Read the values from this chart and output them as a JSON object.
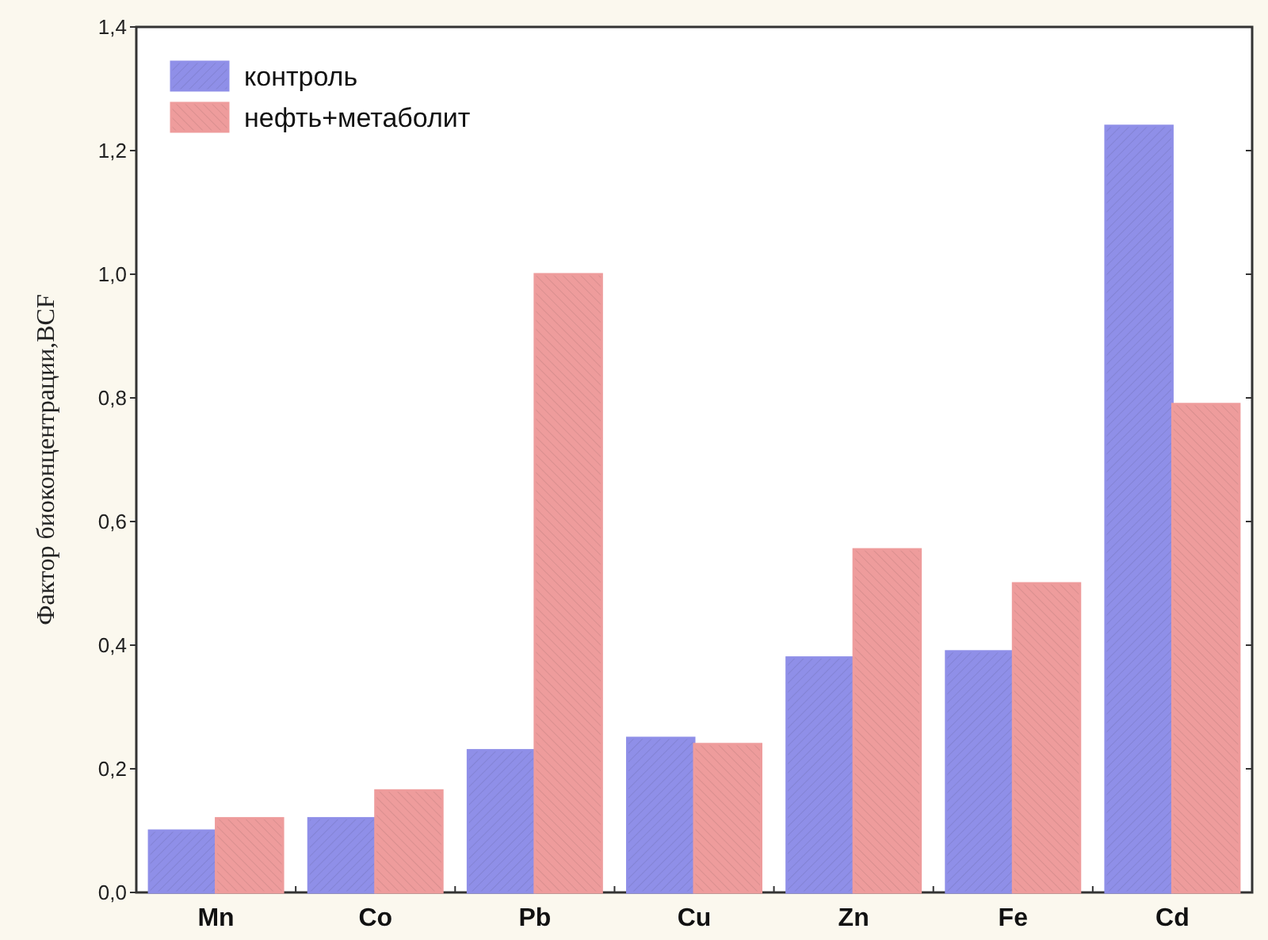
{
  "chart_data": {
    "type": "bar",
    "ylabel": "Фактор биоконцентрации,BCF",
    "categories": [
      "Mn",
      "Co",
      "Pb",
      "Cu",
      "Zn",
      "Fe",
      "Cd"
    ],
    "series": [
      {
        "name": "контроль",
        "color": "#8f8fe8",
        "values": [
          0.1,
          0.12,
          0.23,
          0.25,
          0.38,
          0.39,
          1.24
        ]
      },
      {
        "name": "нефть+метаболит",
        "color": "#ee9c9c",
        "values": [
          0.12,
          0.165,
          1.0,
          0.24,
          0.555,
          0.5,
          0.79
        ]
      }
    ],
    "ylim": [
      0,
      1.4
    ],
    "yticks": [
      {
        "value": 0,
        "label": "0,0"
      },
      {
        "value": 0.2,
        "label": "0,2"
      },
      {
        "value": 0.4,
        "label": "0,4"
      },
      {
        "value": 0.6,
        "label": "0,6"
      },
      {
        "value": 0.8,
        "label": "0,8"
      },
      {
        "value": 1,
        "label": "1,0"
      },
      {
        "value": 1.2,
        "label": "1,2"
      },
      {
        "value": 1.4,
        "label": "1,4"
      }
    ],
    "legend": "top left",
    "grid": false
  }
}
